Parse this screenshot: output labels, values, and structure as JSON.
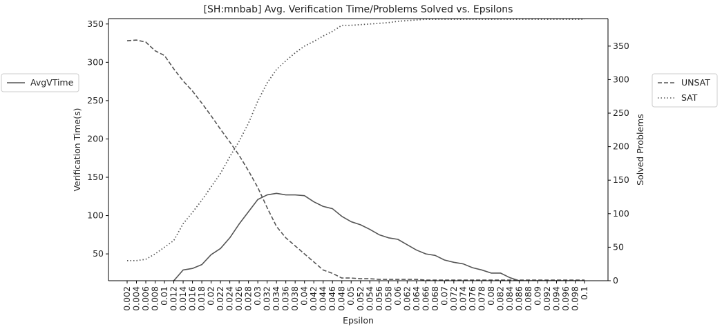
{
  "chart_data": {
    "type": "line",
    "title": "[SH:mnbab] Avg. Verification Time/Problems Solved vs. Epsilons",
    "xlabel": "Epsilon",
    "ylabel_left": "Verification Time(s)",
    "ylabel_right": "Solved Problems",
    "x": [
      "0.002",
      "0.004",
      "0.006",
      "0.008",
      "0.01",
      "0.012",
      "0.014",
      "0.016",
      "0.018",
      "0.02",
      "0.022",
      "0.024",
      "0.026",
      "0.028",
      "0.03",
      "0.032",
      "0.034",
      "0.036",
      "0.038",
      "0.04",
      "0.042",
      "0.044",
      "0.046",
      "0.048",
      "0.05",
      "0.052",
      "0.054",
      "0.056",
      "0.058",
      "0.06",
      "0.062",
      "0.064",
      "0.066",
      "0.068",
      "0.07",
      "0.072",
      "0.074",
      "0.076",
      "0.078",
      "0.08",
      "0.082",
      "0.084",
      "0.086",
      "0.088",
      "0.09",
      "0.092",
      "0.094",
      "0.096",
      "0.098",
      "0.1"
    ],
    "left_axis": {
      "ylim": [
        15,
        357
      ],
      "ticks": [
        50,
        100,
        150,
        200,
        250,
        300,
        350
      ],
      "series": [
        {
          "name": "AvgVTime",
          "style": "solid",
          "values": [
            11,
            12,
            13,
            13,
            13,
            15,
            29,
            31,
            36,
            49,
            57,
            71,
            89,
            105,
            121,
            127,
            129,
            127,
            127,
            126,
            118,
            112,
            109,
            99,
            92,
            88,
            82,
            75,
            71,
            69,
            62,
            55,
            50,
            48,
            42,
            39,
            37,
            32,
            29,
            25,
            25,
            19,
            15,
            15,
            15,
            15,
            15,
            15,
            15,
            15
          ]
        }
      ]
    },
    "right_axis": {
      "ylim": [
        0,
        391
      ],
      "ticks": [
        0,
        50,
        100,
        150,
        200,
        250,
        300,
        350
      ],
      "series": [
        {
          "name": "UNSAT",
          "style": "dashed",
          "values": [
            358,
            359,
            356,
            343,
            336,
            316,
            298,
            283,
            265,
            246,
            226,
            207,
            187,
            164,
            139,
            109,
            81,
            64,
            52,
            40,
            28,
            16,
            11,
            4,
            4,
            3,
            3,
            2,
            2,
            2,
            2,
            2,
            1,
            1,
            1,
            1,
            1,
            1,
            1,
            1,
            1,
            1,
            1,
            1,
            1,
            1,
            1,
            1,
            1,
            1
          ]
        },
        {
          "name": "SAT",
          "style": "dotted",
          "values": [
            30,
            30,
            32,
            40,
            50,
            60,
            85,
            102,
            120,
            140,
            160,
            185,
            208,
            235,
            268,
            295,
            315,
            328,
            340,
            350,
            357,
            365,
            372,
            381,
            381,
            382,
            383,
            384,
            385,
            387,
            388,
            389,
            390,
            390,
            390,
            390,
            390,
            390,
            390,
            390,
            390,
            390,
            390,
            390,
            390,
            390,
            390,
            390,
            390,
            390
          ]
        }
      ]
    },
    "legends": {
      "left": [
        "AvgVTime"
      ],
      "right": [
        "UNSAT",
        "SAT"
      ]
    },
    "colors": {
      "line": "#555555",
      "axis": "#000000",
      "text": "#222222"
    },
    "grid": false
  }
}
